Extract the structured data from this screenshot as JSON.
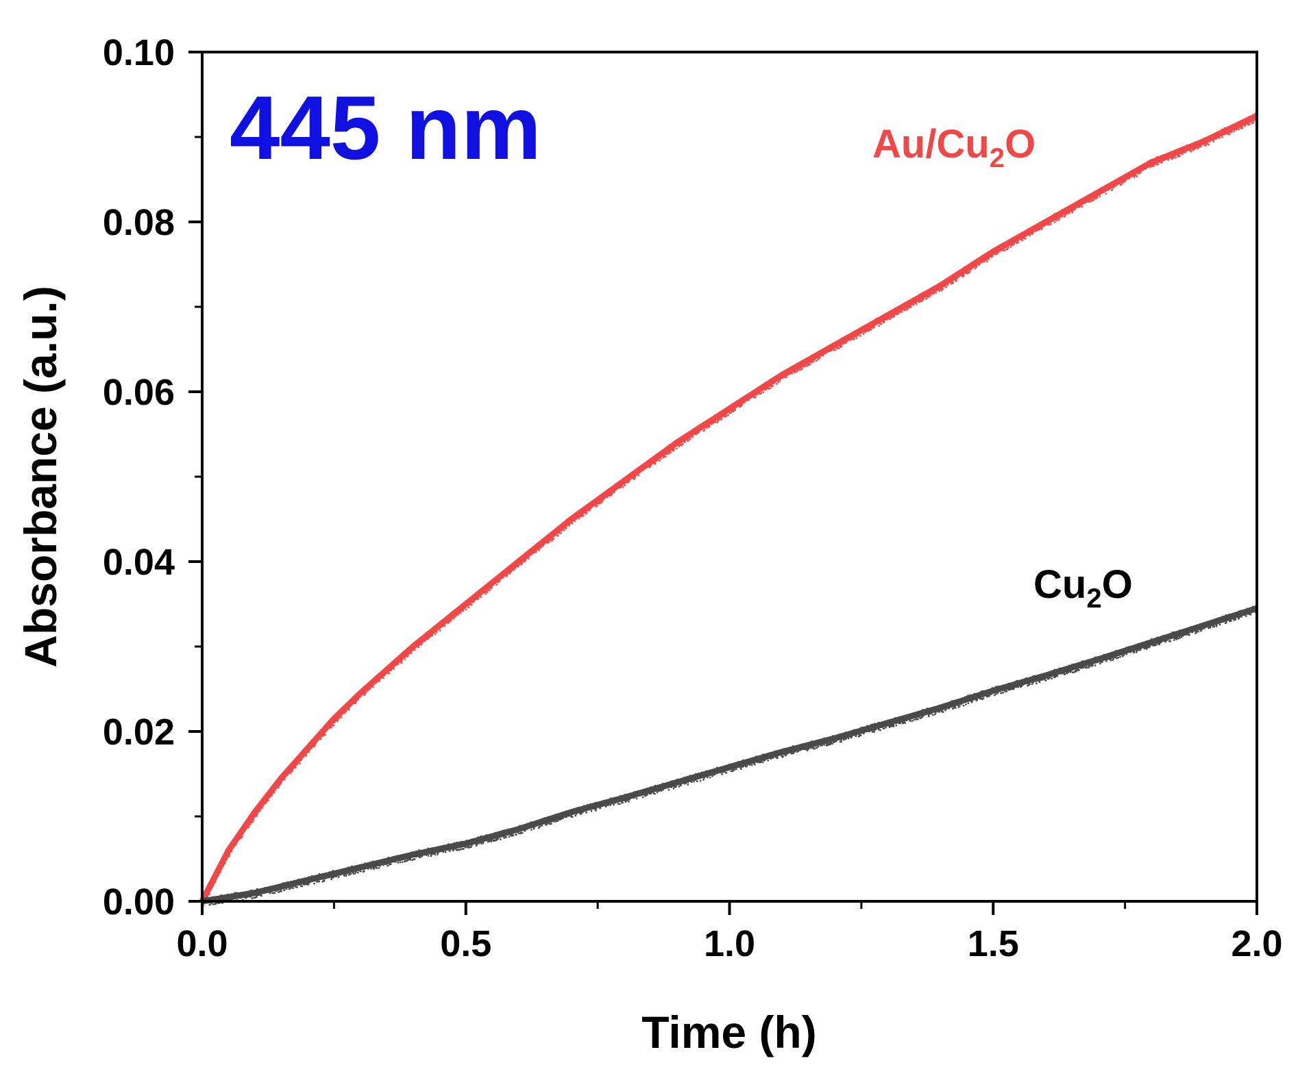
{
  "chart_data": {
    "type": "scatter",
    "title": "",
    "xlabel": "Time (h)",
    "ylabel": "Absorbance (a.u.)",
    "xlim": [
      0,
      2.0
    ],
    "ylim": [
      0,
      0.1
    ],
    "x_ticks": [
      "0.0",
      "0.5",
      "1.0",
      "1.5",
      "2.0"
    ],
    "y_ticks": [
      "0.00",
      "0.02",
      "0.04",
      "0.06",
      "0.08",
      "0.10"
    ],
    "x_tick_values": [
      0,
      0.5,
      1.0,
      1.5,
      2.0
    ],
    "y_tick_values": [
      0,
      0.02,
      0.04,
      0.06,
      0.08,
      0.1
    ],
    "grid": false,
    "annotation": {
      "text": "445 nm",
      "color": "#1010e0"
    },
    "series": [
      {
        "name": "Au/Cu2O",
        "label_main": "Au/Cu",
        "label_sub": "2",
        "label_tail": "O",
        "color": "#f04848",
        "x": [
          0,
          0.05,
          0.1,
          0.15,
          0.2,
          0.25,
          0.3,
          0.4,
          0.5,
          0.6,
          0.7,
          0.8,
          0.9,
          1.0,
          1.1,
          1.2,
          1.3,
          1.4,
          1.5,
          1.6,
          1.7,
          1.8,
          1.9,
          2.0
        ],
        "y": [
          0,
          0.006,
          0.0105,
          0.0145,
          0.018,
          0.0215,
          0.0245,
          0.03,
          0.035,
          0.04,
          0.045,
          0.0495,
          0.054,
          0.058,
          0.062,
          0.0655,
          0.069,
          0.0725,
          0.0765,
          0.08,
          0.0835,
          0.087,
          0.0895,
          0.0925
        ]
      },
      {
        "name": "Cu2O",
        "label_main": "Cu",
        "label_sub": "2",
        "label_tail": "O",
        "color": "#4a4a4a",
        "x": [
          0,
          0.1,
          0.2,
          0.3,
          0.4,
          0.5,
          0.6,
          0.7,
          0.8,
          0.9,
          1.0,
          1.1,
          1.2,
          1.3,
          1.4,
          1.5,
          1.6,
          1.7,
          1.8,
          1.9,
          2.0
        ],
        "y": [
          0,
          0.001,
          0.0025,
          0.004,
          0.0055,
          0.0068,
          0.0085,
          0.0105,
          0.0122,
          0.014,
          0.0158,
          0.0176,
          0.0192,
          0.021,
          0.0228,
          0.0248,
          0.0266,
          0.0285,
          0.0305,
          0.0325,
          0.0345
        ]
      }
    ]
  }
}
